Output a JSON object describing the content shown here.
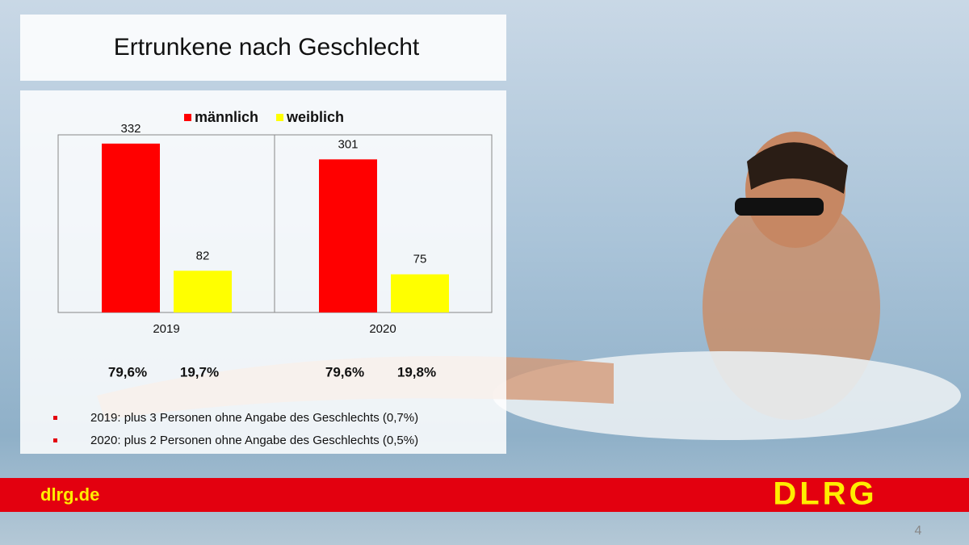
{
  "chart_data": {
    "type": "bar",
    "title": "Ertrunkene nach Geschlecht",
    "categories": [
      "2019",
      "2020"
    ],
    "series": [
      {
        "name": "männlich",
        "color": "#ff0000",
        "values": [
          332,
          301
        ]
      },
      {
        "name": "weiblich",
        "color": "#ffff00",
        "values": [
          82,
          75
        ]
      }
    ],
    "annotations": [
      [
        "79,6%",
        "19,7%"
      ],
      [
        "79,6%",
        "19,8%"
      ]
    ],
    "legend": "top"
  },
  "notes": [
    "2019: plus 3 Personen ohne Angabe des Geschlechts (0,7%)",
    "2020: plus 2 Personen ohne Angabe des Geschlechts (0,5%)"
  ],
  "footer": {
    "url": "dlrg.de",
    "logo": "DLRG",
    "page": "4"
  }
}
